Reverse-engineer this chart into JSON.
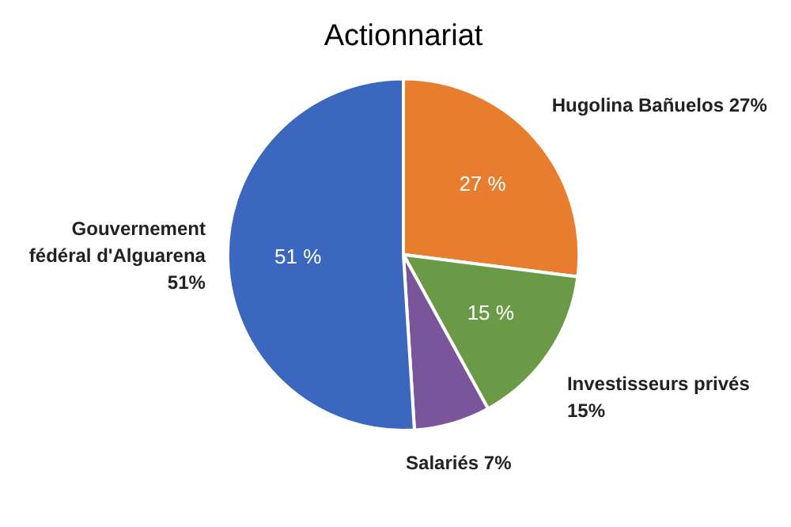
{
  "chart_data": {
    "type": "pie",
    "title": "Actionnariat",
    "categories": [
      "Hugolina Bañuelos 27%",
      "Investisseurs privés 15%",
      "Salariés 7%",
      "Gouvernement fédéral d'Alguarena 51%"
    ],
    "values": [
      27,
      15,
      7,
      51
    ],
    "colors": [
      "#e97d2f",
      "#6a9a46",
      "#7b559c",
      "#3b67bf"
    ],
    "value_labels": [
      "27 %",
      "15 %",
      null,
      "51 %"
    ],
    "legend": false
  }
}
